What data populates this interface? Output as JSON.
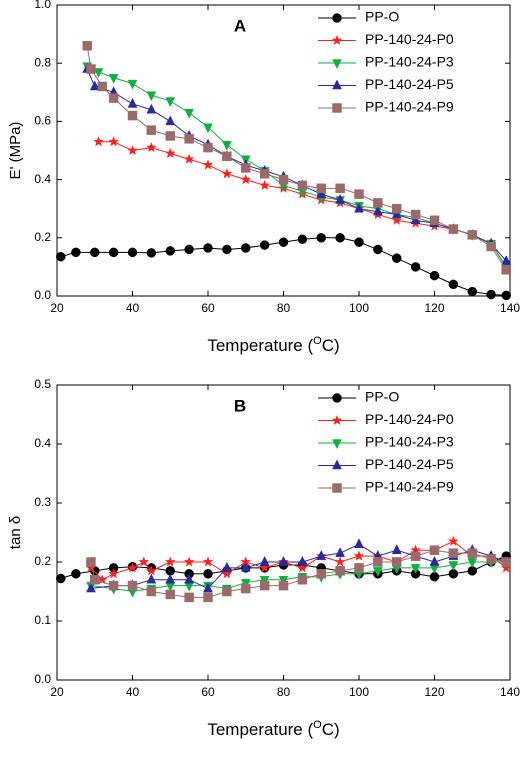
{
  "chart_data": [
    {
      "type": "line",
      "title": "A",
      "ylabel": "E' (MPa)",
      "xlabel": [
        "Temperature (",
        "O",
        "C)"
      ],
      "xlim": [
        20,
        140
      ],
      "xticks": [
        20,
        40,
        60,
        80,
        100,
        120,
        140
      ],
      "ylim": [
        0,
        1
      ],
      "yticks": [
        {
          "value": 0,
          "label": "0.0"
        },
        0.2,
        0.4,
        0.6,
        0.8,
        {
          "value": 1,
          "label": "1.0"
        }
      ],
      "legend": "upper right",
      "series": [
        {
          "name": "PP-O",
          "color": "#000000",
          "marker": "circle",
          "x": [
            21,
            25,
            30,
            35,
            40,
            45,
            50,
            55,
            60,
            65,
            70,
            75,
            80,
            85,
            90,
            95,
            100,
            105,
            110,
            115,
            120,
            125,
            130,
            135,
            139
          ],
          "values": [
            0.135,
            0.15,
            0.15,
            0.15,
            0.15,
            0.148,
            0.155,
            0.16,
            0.165,
            0.16,
            0.165,
            0.175,
            0.185,
            0.195,
            0.2,
            0.2,
            0.185,
            0.16,
            0.13,
            0.1,
            0.07,
            0.04,
            0.015,
            0.005,
            0.002
          ]
        },
        {
          "name": "PP-140-24-P0",
          "color": "#ff2020",
          "marker": "star",
          "x": [
            31,
            35,
            40,
            45,
            50,
            55,
            60,
            65,
            70,
            75,
            80,
            85,
            90,
            95,
            100,
            105,
            110,
            115,
            120,
            125,
            130,
            135,
            139
          ],
          "values": [
            0.53,
            0.53,
            0.5,
            0.51,
            0.49,
            0.47,
            0.45,
            0.42,
            0.4,
            0.38,
            0.37,
            0.35,
            0.33,
            0.32,
            0.3,
            0.28,
            0.26,
            0.25,
            0.24,
            0.23,
            0.21,
            0.18,
            0.1
          ]
        },
        {
          "name": "PP-140-24-P3",
          "color": "#10b040",
          "marker": "down",
          "x": [
            28,
            31,
            35,
            40,
            45,
            50,
            55,
            60,
            65,
            70,
            75,
            80,
            85,
            90,
            95,
            100,
            105,
            110,
            115,
            120,
            125,
            130,
            135,
            139
          ],
          "values": [
            0.79,
            0.77,
            0.75,
            0.73,
            0.69,
            0.67,
            0.63,
            0.58,
            0.52,
            0.47,
            0.43,
            0.38,
            0.36,
            0.34,
            0.33,
            0.31,
            0.3,
            0.28,
            0.27,
            0.25,
            0.23,
            0.21,
            0.18,
            0.1
          ]
        },
        {
          "name": "PP-140-24-P5",
          "color": "#2a2a9a",
          "marker": "up",
          "x": [
            28,
            30,
            35,
            40,
            45,
            50,
            55,
            60,
            65,
            70,
            75,
            80,
            85,
            90,
            95,
            100,
            105,
            110,
            115,
            120,
            125,
            130,
            135,
            139
          ],
          "values": [
            0.78,
            0.72,
            0.7,
            0.66,
            0.64,
            0.6,
            0.55,
            0.52,
            0.48,
            0.45,
            0.43,
            0.41,
            0.38,
            0.35,
            0.33,
            0.3,
            0.29,
            0.28,
            0.26,
            0.25,
            0.23,
            0.21,
            0.18,
            0.12
          ]
        },
        {
          "name": "PP-140-24-P9",
          "color": "#9b6b6b",
          "marker": "square",
          "x": [
            28,
            29,
            32,
            35,
            40,
            45,
            50,
            55,
            60,
            65,
            70,
            75,
            80,
            85,
            90,
            95,
            100,
            105,
            110,
            115,
            120,
            125,
            130,
            135,
            139
          ],
          "values": [
            0.86,
            0.78,
            0.72,
            0.68,
            0.62,
            0.57,
            0.55,
            0.54,
            0.51,
            0.48,
            0.44,
            0.42,
            0.4,
            0.38,
            0.37,
            0.37,
            0.35,
            0.32,
            0.3,
            0.28,
            0.26,
            0.23,
            0.21,
            0.17,
            0.09
          ]
        }
      ]
    },
    {
      "type": "line",
      "title": "B",
      "ylabel": "tan δ",
      "xlabel": [
        "Temperature (",
        "O",
        "C)"
      ],
      "xlim": [
        20,
        140
      ],
      "xticks": [
        20,
        40,
        60,
        80,
        100,
        120,
        140
      ],
      "ylim": [
        0,
        0.5
      ],
      "yticks": [
        {
          "value": 0,
          "label": "0.0"
        },
        0.1,
        0.2,
        0.3,
        0.4,
        0.5
      ],
      "legend": "upper right",
      "series": [
        {
          "name": "PP-O",
          "color": "#000000",
          "marker": "circle",
          "x": [
            21,
            25,
            30,
            35,
            40,
            45,
            50,
            55,
            60,
            65,
            70,
            75,
            80,
            85,
            90,
            95,
            100,
            105,
            110,
            115,
            120,
            125,
            130,
            135,
            139
          ],
          "values": [
            0.172,
            0.18,
            0.185,
            0.19,
            0.192,
            0.19,
            0.185,
            0.18,
            0.18,
            0.185,
            0.19,
            0.19,
            0.195,
            0.195,
            0.19,
            0.185,
            0.18,
            0.18,
            0.185,
            0.18,
            0.175,
            0.18,
            0.185,
            0.2,
            0.21
          ]
        },
        {
          "name": "PP-140-24-P0",
          "color": "#ff2020",
          "marker": "star",
          "x": [
            29,
            32,
            35,
            40,
            43,
            45,
            50,
            55,
            60,
            65,
            70,
            75,
            80,
            85,
            90,
            95,
            100,
            105,
            110,
            115,
            120,
            125,
            130,
            135,
            139
          ],
          "values": [
            0.19,
            0.17,
            0.18,
            0.19,
            0.2,
            0.185,
            0.2,
            0.2,
            0.2,
            0.18,
            0.2,
            0.19,
            0.2,
            0.19,
            0.21,
            0.2,
            0.21,
            0.21,
            0.2,
            0.22,
            0.22,
            0.235,
            0.21,
            0.21,
            0.19
          ]
        },
        {
          "name": "PP-140-24-P3",
          "color": "#10b040",
          "marker": "down",
          "x": [
            29,
            35,
            40,
            45,
            50,
            55,
            60,
            65,
            70,
            75,
            80,
            85,
            90,
            95,
            100,
            105,
            110,
            115,
            120,
            125,
            130,
            135,
            139
          ],
          "values": [
            0.16,
            0.155,
            0.15,
            0.155,
            0.16,
            0.16,
            0.16,
            0.155,
            0.165,
            0.17,
            0.17,
            0.175,
            0.175,
            0.18,
            0.18,
            0.185,
            0.19,
            0.19,
            0.19,
            0.195,
            0.2,
            0.2,
            0.2
          ]
        },
        {
          "name": "PP-140-24-P5",
          "color": "#2a2a9a",
          "marker": "up",
          "x": [
            29,
            35,
            40,
            45,
            50,
            55,
            60,
            65,
            70,
            75,
            80,
            85,
            90,
            95,
            100,
            105,
            110,
            115,
            120,
            125,
            130,
            135,
            139
          ],
          "values": [
            0.155,
            0.16,
            0.16,
            0.17,
            0.17,
            0.17,
            0.155,
            0.19,
            0.19,
            0.2,
            0.2,
            0.2,
            0.21,
            0.215,
            0.23,
            0.21,
            0.22,
            0.21,
            0.2,
            0.21,
            0.22,
            0.21,
            0.2
          ]
        },
        {
          "name": "PP-140-24-P9",
          "color": "#9b6b6b",
          "marker": "square",
          "x": [
            29,
            30,
            35,
            40,
            45,
            50,
            55,
            60,
            65,
            70,
            75,
            80,
            85,
            90,
            95,
            100,
            105,
            110,
            115,
            120,
            125,
            130,
            135,
            139
          ],
          "values": [
            0.2,
            0.17,
            0.16,
            0.16,
            0.15,
            0.145,
            0.14,
            0.14,
            0.15,
            0.155,
            0.16,
            0.16,
            0.17,
            0.18,
            0.185,
            0.19,
            0.2,
            0.2,
            0.21,
            0.22,
            0.215,
            0.215,
            0.205,
            0.2
          ]
        }
      ]
    }
  ]
}
